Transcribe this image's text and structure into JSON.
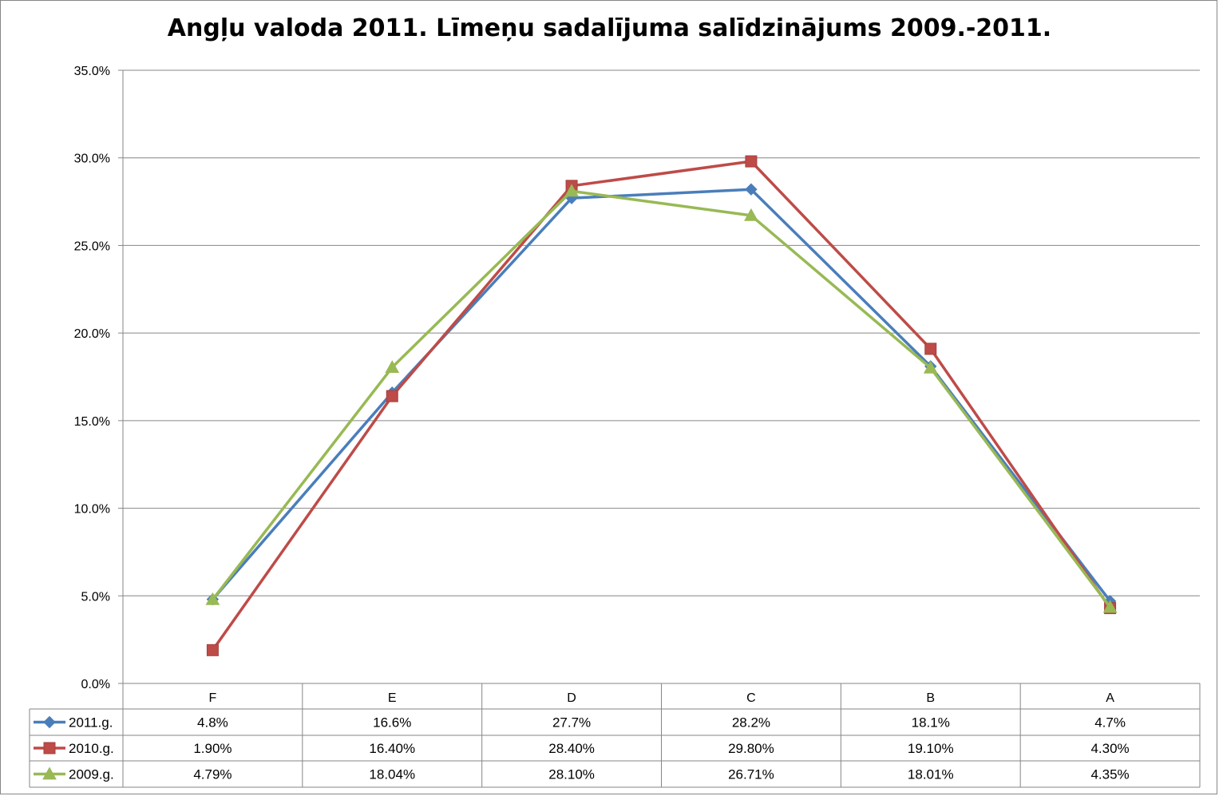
{
  "chart_data": {
    "type": "line",
    "title": "Angļu valoda 2011. Līmeņu sadalījuma salīdzinājums 2009.-2011.",
    "categories": [
      "F",
      "E",
      "D",
      "C",
      "B",
      "A"
    ],
    "y_ticks": [
      "0.0%",
      "5.0%",
      "10.0%",
      "15.0%",
      "20.0%",
      "25.0%",
      "30.0%",
      "35.0%"
    ],
    "ylim": [
      0,
      35
    ],
    "y_unit": "%",
    "grid": true,
    "legend": "data-table-bottom",
    "series": [
      {
        "name": "2011.g.",
        "color": "#4a7ebb",
        "marker": "diamond",
        "values": [
          4.8,
          16.6,
          27.7,
          28.2,
          18.1,
          4.7
        ],
        "labels": [
          "4.8%",
          "16.6%",
          "27.7%",
          "28.2%",
          "18.1%",
          "4.7%"
        ]
      },
      {
        "name": "2010.g.",
        "color": "#be4b48",
        "marker": "square",
        "values": [
          1.9,
          16.4,
          28.4,
          29.8,
          19.1,
          4.3
        ],
        "labels": [
          "1.90%",
          "16.40%",
          "28.40%",
          "29.80%",
          "19.10%",
          "4.30%"
        ]
      },
      {
        "name": "2009.g.",
        "color": "#98b954",
        "marker": "triangle",
        "values": [
          4.79,
          18.04,
          28.1,
          26.71,
          18.01,
          4.35
        ],
        "labels": [
          "4.79%",
          "18.04%",
          "28.10%",
          "26.71%",
          "18.01%",
          "4.35%"
        ]
      }
    ]
  }
}
